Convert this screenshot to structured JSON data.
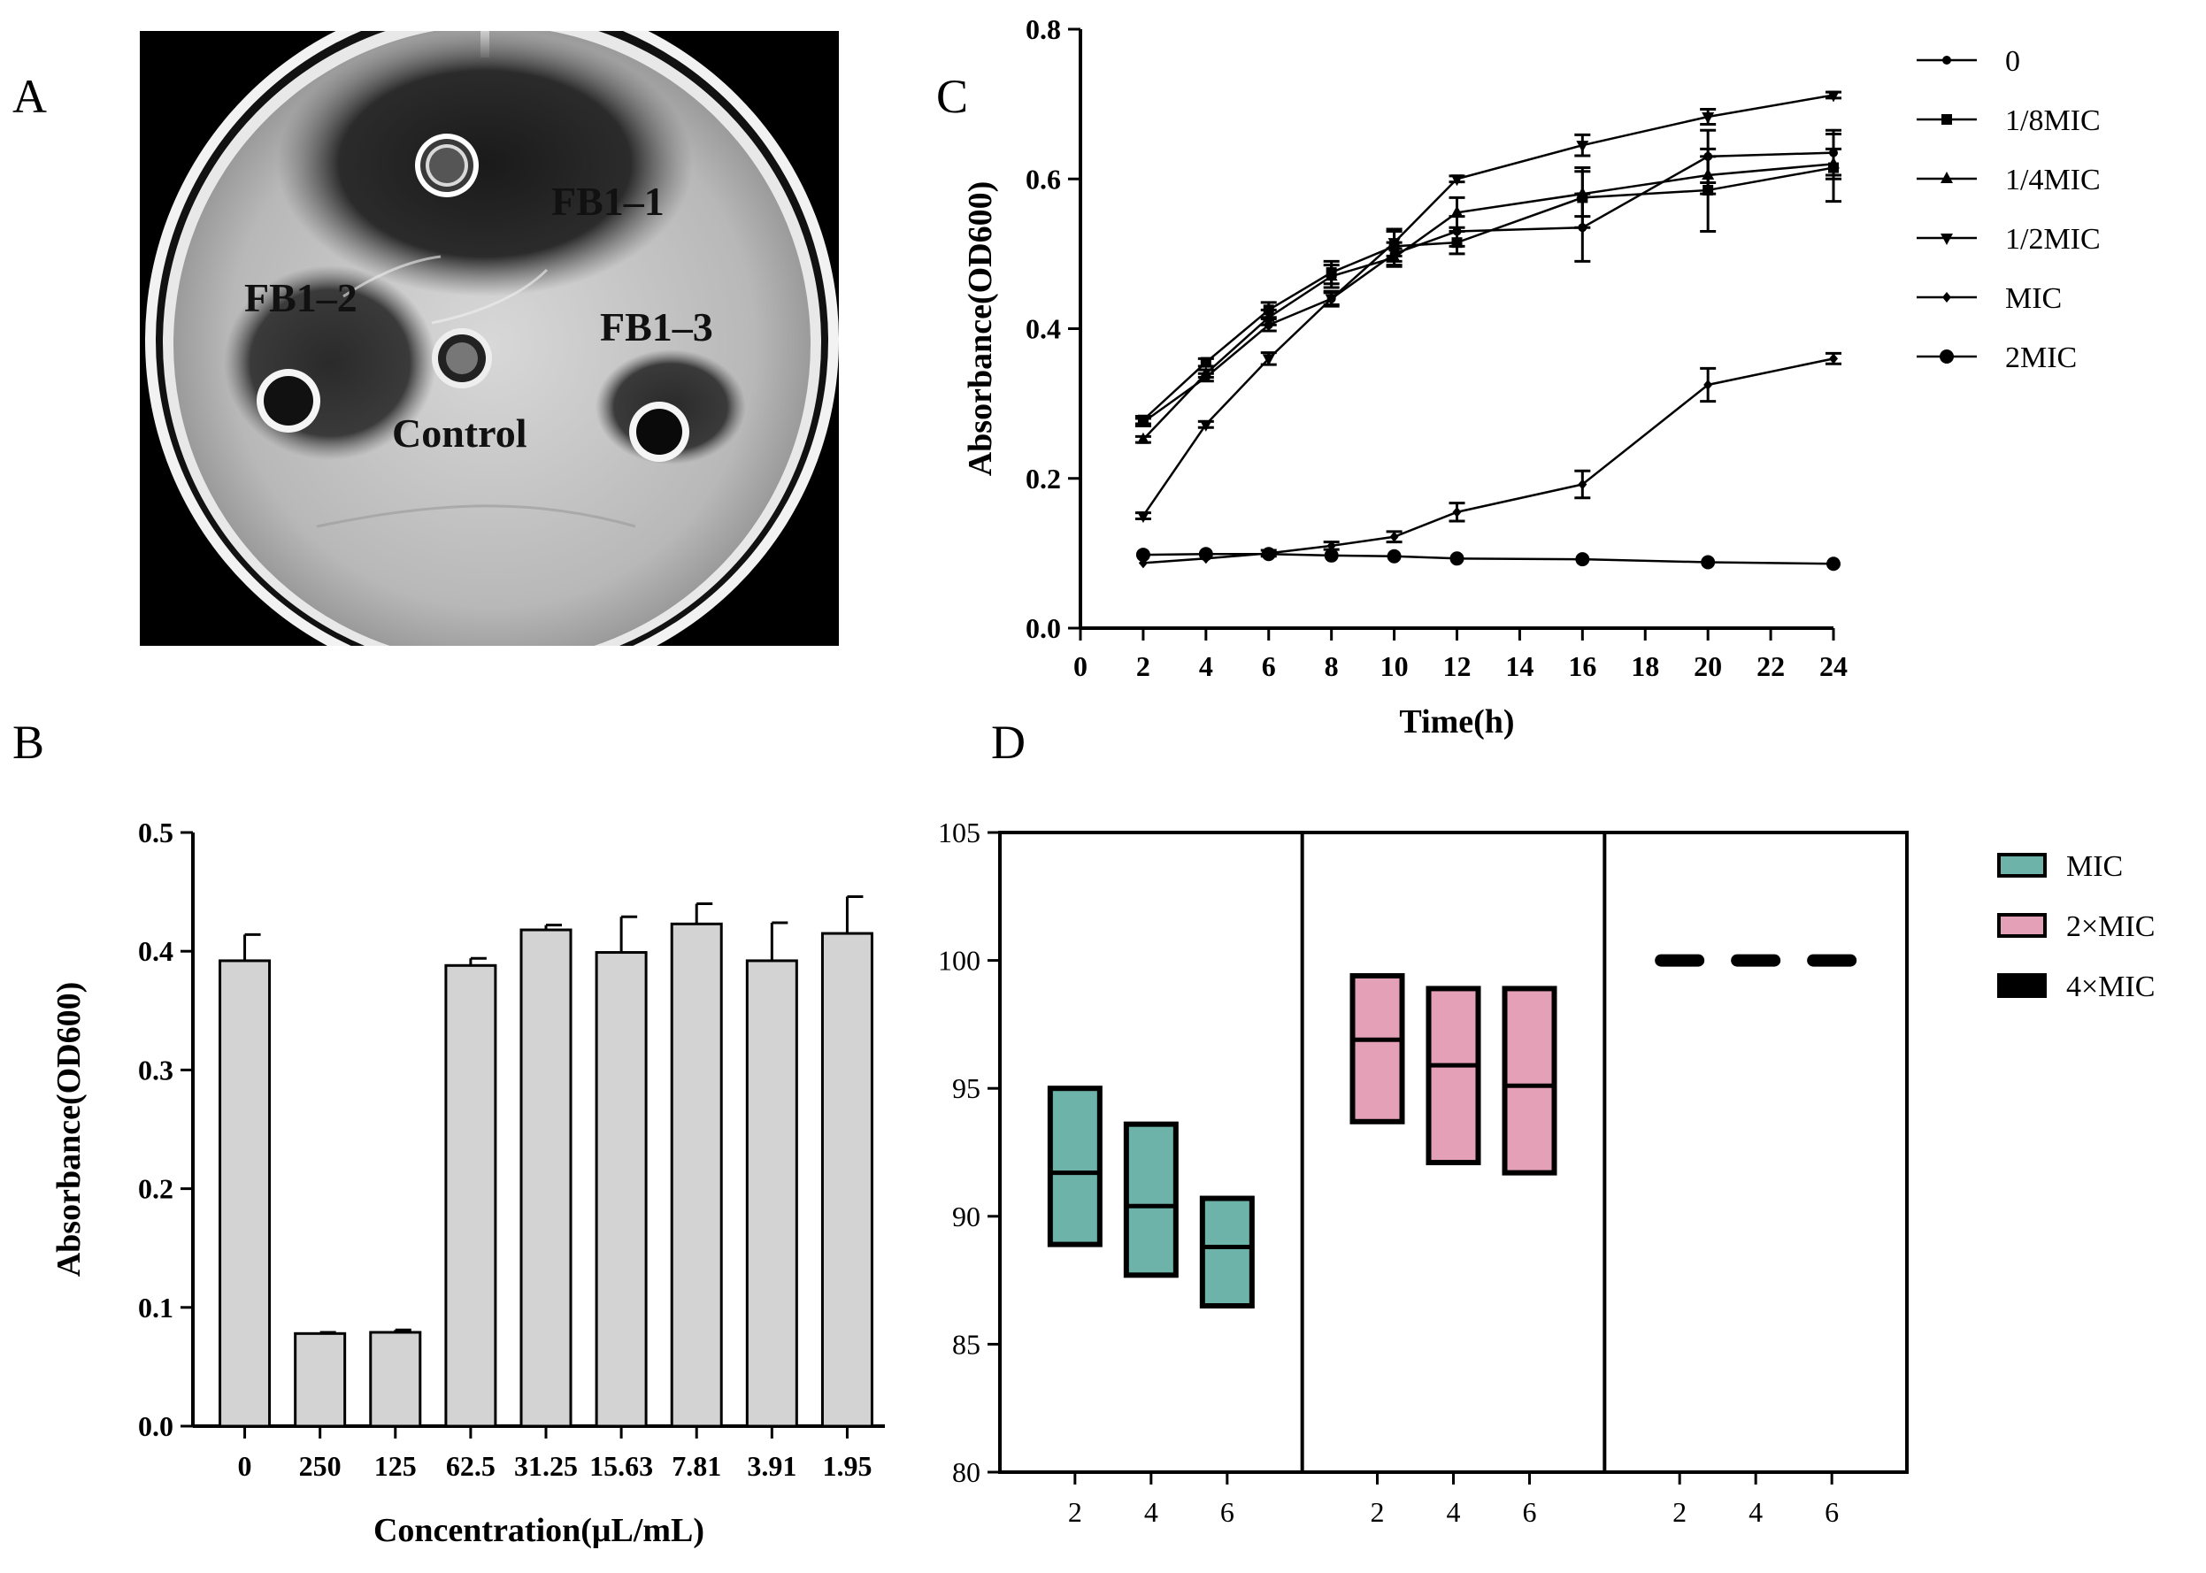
{
  "panels": {
    "a": "A",
    "b": "B",
    "c": "C",
    "d": "D"
  },
  "panel_a": {
    "labels": {
      "fb1_1": "FB1–1",
      "fb1_2": "FB1–2",
      "fb1_3": "FB1–3",
      "control": "Control"
    }
  },
  "chart_data": [
    {
      "id": "B",
      "type": "bar",
      "xlabel": "Concentration(μL/mL)",
      "ylabel": "Absorbance(OD600)",
      "ylim": [
        0,
        0.5
      ],
      "yticks": [
        "0.0",
        "0.1",
        "0.2",
        "0.3",
        "0.4",
        "0.5"
      ],
      "categories": [
        "0",
        "250",
        "125",
        "62.5",
        "31.25",
        "15.63",
        "7.81",
        "3.91",
        "1.95"
      ],
      "values": [
        0.392,
        0.078,
        0.079,
        0.388,
        0.418,
        0.399,
        0.423,
        0.392,
        0.415
      ],
      "errors": [
        0.022,
        0.001,
        0.002,
        0.006,
        0.004,
        0.03,
        0.017,
        0.032,
        0.031
      ],
      "bar_color": "#d3d3d3"
    },
    {
      "id": "C",
      "type": "line",
      "xlabel": "Time(h)",
      "ylabel": "Absorbance(OD600)",
      "xlim": [
        0,
        24
      ],
      "ylim": [
        0,
        0.8
      ],
      "xticks": [
        "0",
        "2",
        "4",
        "6",
        "8",
        "10",
        "12",
        "14",
        "16",
        "18",
        "20",
        "22",
        "24"
      ],
      "yticks": [
        "0.0",
        "0.2",
        "0.4",
        "0.6",
        "0.8"
      ],
      "x": [
        2,
        4,
        6,
        8,
        10,
        12,
        16,
        20,
        24
      ],
      "legend_position": "right",
      "series": [
        {
          "name": "0",
          "marker": "circle-small",
          "values": [
            0.275,
            0.335,
            0.405,
            0.44,
            0.5,
            0.53,
            0.535,
            0.63,
            0.635
          ],
          "errors": [
            0.005,
            0.005,
            0.008,
            0.01,
            0.015,
            0.02,
            0.045,
            0.035,
            0.03
          ]
        },
        {
          "name": "1/8MIC",
          "marker": "square",
          "values": [
            0.278,
            0.355,
            0.425,
            0.475,
            0.51,
            0.515,
            0.575,
            0.585,
            0.615
          ],
          "errors": [
            0.005,
            0.005,
            0.01,
            0.015,
            0.02,
            0.015,
            0.04,
            0.055,
            0.045
          ]
        },
        {
          "name": "1/4MIC",
          "marker": "triangle-up",
          "values": [
            0.252,
            0.34,
            0.415,
            0.47,
            0.495,
            0.555,
            0.58,
            0.605,
            0.62
          ],
          "errors": [
            0.004,
            0.005,
            0.01,
            0.015,
            0.012,
            0.02,
            0.03,
            0.025,
            0.02
          ]
        },
        {
          "name": "1/2MIC",
          "marker": "triangle-down",
          "values": [
            0.15,
            0.272,
            0.36,
            0.44,
            0.515,
            0.6,
            0.645,
            0.683,
            0.712
          ],
          "errors": [
            0.004,
            0.004,
            0.008,
            0.008,
            0.018,
            0.004,
            0.014,
            0.01,
            0.004
          ]
        },
        {
          "name": "MIC",
          "marker": "diamond-small",
          "values": [
            0.087,
            0.093,
            0.1,
            0.11,
            0.122,
            0.155,
            0.192,
            0.325,
            0.36
          ],
          "errors": [
            0.003,
            0.003,
            0.004,
            0.005,
            0.007,
            0.012,
            0.018,
            0.022,
            0.007
          ]
        },
        {
          "name": "2MIC",
          "marker": "circle",
          "values": [
            0.098,
            0.099,
            0.099,
            0.097,
            0.096,
            0.093,
            0.092,
            0.088,
            0.086
          ],
          "errors": [
            0.002,
            0.002,
            0.002,
            0.002,
            0.002,
            0.002,
            0.002,
            0.002,
            0.002
          ]
        }
      ]
    },
    {
      "id": "D",
      "type": "box",
      "ylim": [
        80,
        105
      ],
      "yticks": [
        "80",
        "85",
        "90",
        "95",
        "100",
        "105"
      ],
      "xticks": [
        "2",
        "4",
        "6"
      ],
      "legend_position": "right",
      "groups": [
        {
          "name": "MIC",
          "color": "#6eb3a9",
          "boxes": [
            {
              "x": "2",
              "min": 88.9,
              "median": 91.7,
              "max": 95.0
            },
            {
              "x": "4",
              "min": 87.7,
              "median": 90.4,
              "max": 93.6
            },
            {
              "x": "6",
              "min": 86.5,
              "median": 88.8,
              "max": 90.7
            }
          ]
        },
        {
          "name": "2×MIC",
          "color": "#e3a0b7",
          "boxes": [
            {
              "x": "2",
              "min": 93.7,
              "median": 96.9,
              "max": 99.4
            },
            {
              "x": "4",
              "min": 92.1,
              "median": 95.9,
              "max": 98.9
            },
            {
              "x": "6",
              "min": 91.7,
              "median": 95.1,
              "max": 98.9
            }
          ]
        },
        {
          "name": "4×MIC",
          "color": "#000000",
          "boxes": [
            {
              "x": "2",
              "min": 100,
              "median": 100,
              "max": 100
            },
            {
              "x": "4",
              "min": 100,
              "median": 100,
              "max": 100
            },
            {
              "x": "6",
              "min": 100,
              "median": 100,
              "max": 100
            }
          ]
        }
      ]
    }
  ]
}
